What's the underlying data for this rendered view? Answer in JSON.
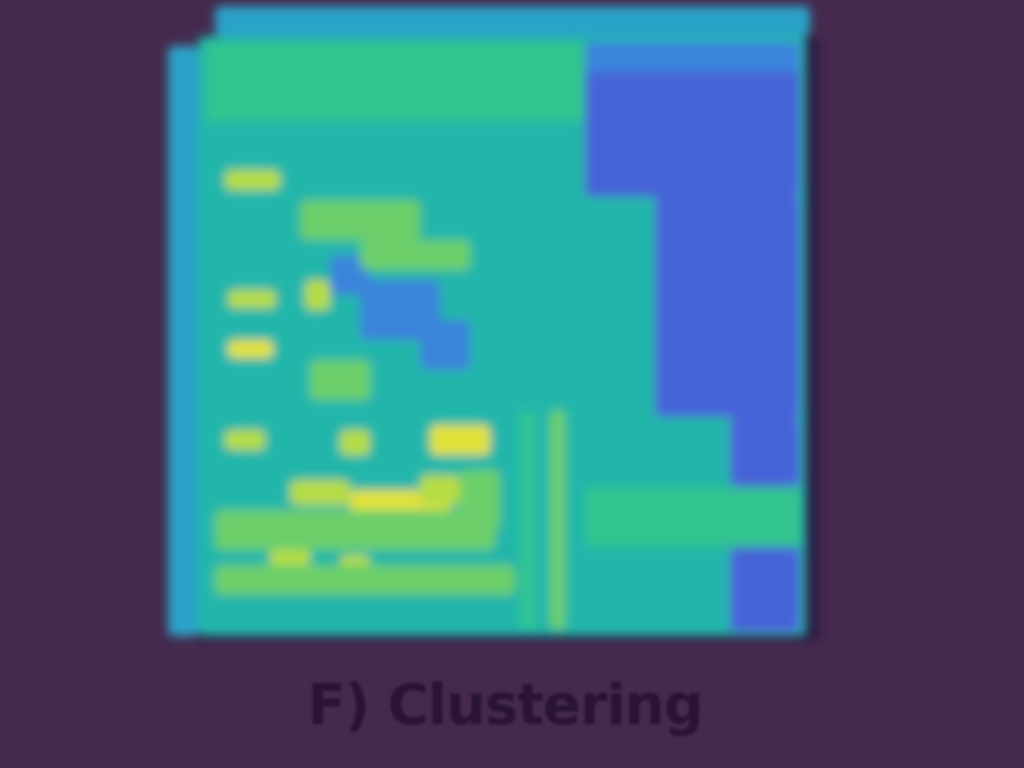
{
  "panel": {
    "caption": "F) Clustering"
  },
  "colors": {
    "background": "#452a4e",
    "caption_text": "#2a1436",
    "colormap": [
      "#4763d8",
      "#3b84dc",
      "#2ba3c9",
      "#23b6ab",
      "#33c48f",
      "#6ccf6a",
      "#b6dc44",
      "#e2e23a"
    ]
  }
}
